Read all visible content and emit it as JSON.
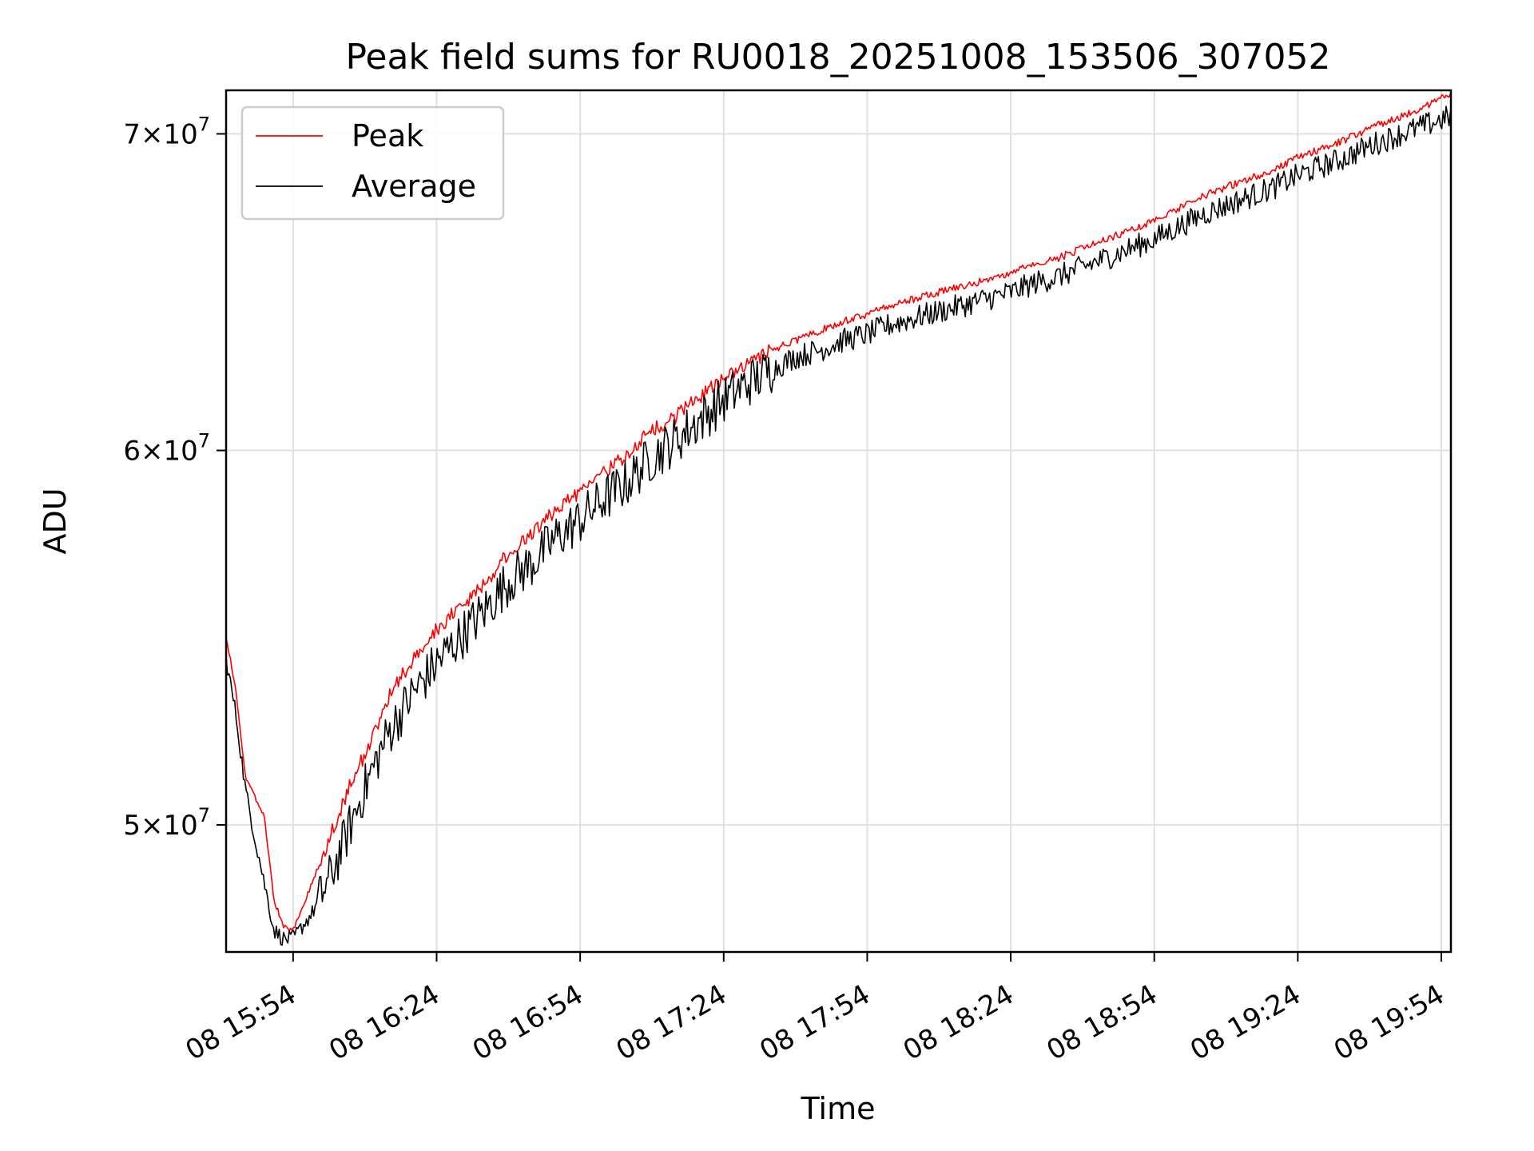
{
  "chart_data": {
    "type": "line",
    "title": "Peak field sums for RU0018_20251008_153506_307052",
    "xlabel": "Time",
    "ylabel": "ADU",
    "yscale": "log",
    "ylim": [
      47000000,
      71500000
    ],
    "xlim_minutes": [
      -14,
      242
    ],
    "grid": true,
    "legend_position": "upper-left",
    "x_ticks": [
      {
        "minutes": 0,
        "label": "08 15:54"
      },
      {
        "minutes": 30,
        "label": "08 16:24"
      },
      {
        "minutes": 60,
        "label": "08 16:54"
      },
      {
        "minutes": 90,
        "label": "08 17:24"
      },
      {
        "minutes": 120,
        "label": "08 17:54"
      },
      {
        "minutes": 150,
        "label": "08 18:24"
      },
      {
        "minutes": 180,
        "label": "08 18:54"
      },
      {
        "minutes": 210,
        "label": "08 19:24"
      },
      {
        "minutes": 240,
        "label": "08 19:54"
      }
    ],
    "y_ticks": [
      {
        "value": 50000000,
        "mantissa": "5",
        "base": "10",
        "exp": "7"
      },
      {
        "value": 60000000,
        "mantissa": "6",
        "base": "10",
        "exp": "7"
      },
      {
        "value": 70000000,
        "mantissa": "7",
        "base": "10",
        "exp": "7"
      }
    ],
    "time_unit": "minutes since 08 15:54",
    "series": [
      {
        "name": "Peak",
        "color": "#ff0000",
        "x": [
          -14,
          -12,
          -10,
          -8,
          -6,
          -4,
          -2,
          0,
          4,
          8,
          12,
          16,
          20,
          25,
          30,
          35,
          40,
          45,
          50,
          55,
          60,
          65,
          70,
          75,
          80,
          85,
          90,
          95,
          100,
          105,
          110,
          115,
          120,
          125,
          130,
          135,
          140,
          145,
          150,
          155,
          160,
          165,
          170,
          175,
          180,
          185,
          190,
          195,
          200,
          205,
          210,
          215,
          220,
          225,
          230,
          235,
          242
        ],
        "y": [
          54800000,
          53400000,
          51200000,
          50700000,
          50200000,
          48200000,
          47600000,
          47500000,
          48600000,
          49800000,
          51000000,
          52000000,
          53200000,
          54200000,
          55000000,
          55600000,
          56200000,
          57100000,
          57600000,
          58300000,
          58800000,
          59400000,
          59900000,
          60600000,
          61000000,
          61600000,
          62100000,
          62600000,
          63000000,
          63300000,
          63600000,
          63900000,
          64100000,
          64400000,
          64600000,
          64800000,
          65000000,
          65200000,
          65400000,
          65700000,
          65900000,
          66200000,
          66500000,
          66800000,
          67100000,
          67500000,
          67900000,
          68200000,
          68500000,
          68800000,
          69200000,
          69500000,
          69800000,
          70200000,
          70500000,
          70800000,
          71400000
        ]
      },
      {
        "name": "Average",
        "color": "#000000",
        "x": [
          -14,
          -12,
          -10,
          -8,
          -6,
          -4,
          -2,
          0,
          4,
          8,
          12,
          16,
          20,
          25,
          30,
          35,
          40,
          45,
          50,
          55,
          60,
          65,
          70,
          75,
          80,
          85,
          90,
          95,
          100,
          105,
          110,
          115,
          120,
          125,
          130,
          135,
          140,
          145,
          150,
          155,
          160,
          165,
          170,
          175,
          180,
          185,
          190,
          195,
          200,
          205,
          210,
          215,
          220,
          225,
          230,
          235,
          242
        ],
        "y": [
          54200000,
          52800000,
          50900000,
          49700000,
          48600000,
          47500000,
          47300000,
          47300000,
          47900000,
          48800000,
          50000000,
          51200000,
          52300000,
          53300000,
          54100000,
          54800000,
          55500000,
          56300000,
          56800000,
          57500000,
          58000000,
          58600000,
          59100000,
          59800000,
          60300000,
          60900000,
          61500000,
          62000000,
          62400000,
          62800000,
          63000000,
          63300000,
          63500000,
          63800000,
          64000000,
          64200000,
          64400000,
          64600000,
          64800000,
          65100000,
          65300000,
          65600000,
          65900000,
          66200000,
          66500000,
          66900000,
          67300000,
          67600000,
          67900000,
          68200000,
          68600000,
          68900000,
          69200000,
          69600000,
          69900000,
          70200000,
          70600000
        ]
      }
    ]
  },
  "legend": {
    "items": [
      {
        "label": "Peak",
        "color": "#ff0000"
      },
      {
        "label": "Average",
        "color": "#000000"
      }
    ]
  },
  "colors": {
    "grid": "#e0e0e0",
    "axes": "#000000",
    "legend_border": "#cccccc"
  }
}
